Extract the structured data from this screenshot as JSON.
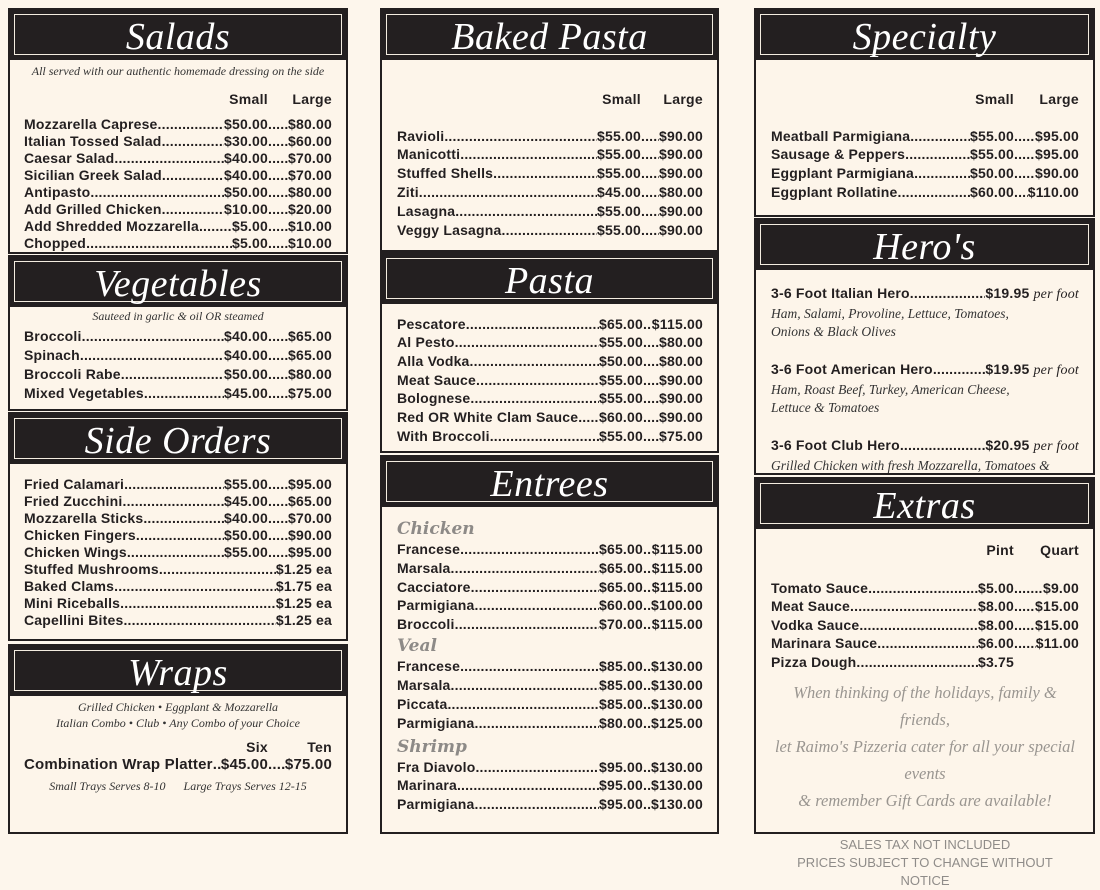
{
  "salads": {
    "title": "Salads",
    "note": "All served with our authentic homemade dressing on the side",
    "col_headers": [
      "Small",
      "Large"
    ],
    "items": [
      {
        "name": "Mozzarella Caprese",
        "prices": [
          "$50.00",
          "$80.00"
        ]
      },
      {
        "name": "Italian Tossed Salad",
        "prices": [
          "$30.00",
          "$60.00"
        ]
      },
      {
        "name": "Caesar Salad",
        "prices": [
          "$40.00",
          "$70.00"
        ]
      },
      {
        "name": "Sicilian Greek Salad",
        "prices": [
          "$40.00",
          "$70.00"
        ]
      },
      {
        "name": "Antipasto",
        "prices": [
          "$50.00",
          "$80.00"
        ]
      },
      {
        "name": "Add Grilled Chicken",
        "prices": [
          "$10.00",
          "$20.00"
        ]
      },
      {
        "name": "Add Shredded Mozzarella",
        "prices": [
          "$5.00",
          "$10.00"
        ]
      },
      {
        "name": "Chopped",
        "prices": [
          "$5.00",
          "$10.00"
        ]
      }
    ]
  },
  "vegetables": {
    "title": "Vegetables",
    "note": "Sauteed in garlic & oil OR steamed",
    "items": [
      {
        "name": "Broccoli",
        "prices": [
          "$40.00",
          "$65.00"
        ]
      },
      {
        "name": "Spinach",
        "prices": [
          "$40.00",
          "$65.00"
        ]
      },
      {
        "name": "Broccoli Rabe",
        "prices": [
          "$50.00",
          "$80.00"
        ]
      },
      {
        "name": "Mixed Vegetables",
        "prices": [
          "$45.00",
          "$75.00"
        ]
      }
    ]
  },
  "side_orders": {
    "title": "Side Orders",
    "items": [
      {
        "name": "Fried Calamari",
        "prices": [
          "$55.00",
          "$95.00"
        ]
      },
      {
        "name": "Fried Zucchini",
        "prices": [
          "$45.00",
          "$65.00"
        ]
      },
      {
        "name": "Mozzarella Sticks",
        "prices": [
          "$40.00",
          "$70.00"
        ]
      },
      {
        "name": "Chicken Fingers",
        "prices": [
          "$50.00",
          "$90.00"
        ]
      },
      {
        "name": "Chicken Wings",
        "prices": [
          "$55.00",
          "$95.00"
        ]
      },
      {
        "name": "Stuffed Mushrooms",
        "prices": [
          "$1.25 ea"
        ]
      },
      {
        "name": "Baked Clams",
        "prices": [
          "$1.75 ea"
        ]
      },
      {
        "name": "Mini Riceballs",
        "prices": [
          "$1.25 ea"
        ]
      },
      {
        "name": "Capellini Bites",
        "prices": [
          "$1.25 ea"
        ]
      }
    ]
  },
  "wraps": {
    "title": "Wraps",
    "notes": [
      "Grilled Chicken • Eggplant & Mozzarella",
      "Italian Combo • Club • Any Combo of your Choice"
    ],
    "col_headers": [
      "Six",
      "Ten"
    ],
    "items": [
      {
        "name": "Combination Wrap Platter",
        "prices": [
          "$45.00",
          "$75.00"
        ]
      }
    ],
    "footnote": "Small Trays Serves 8-10      Large Trays Serves 12-15"
  },
  "baked_pasta": {
    "title": "Baked Pasta",
    "col_headers": [
      "Small",
      "Large"
    ],
    "items": [
      {
        "name": "Ravioli",
        "prices": [
          "$55.00",
          "$90.00"
        ]
      },
      {
        "name": "Manicotti",
        "prices": [
          "$55.00",
          "$90.00"
        ]
      },
      {
        "name": "Stuffed Shells",
        "prices": [
          "$55.00",
          "$90.00"
        ]
      },
      {
        "name": "Ziti",
        "prices": [
          "$45.00",
          "$80.00"
        ]
      },
      {
        "name": "Lasagna",
        "prices": [
          "$55.00",
          "$90.00"
        ]
      },
      {
        "name": "Veggy Lasagna",
        "prices": [
          "$55.00",
          "$90.00"
        ]
      }
    ]
  },
  "pasta": {
    "title": "Pasta",
    "items": [
      {
        "name": "Pescatore",
        "prices": [
          "$65.00",
          "$115.00"
        ]
      },
      {
        "name": "Al Pesto",
        "prices": [
          "$55.00",
          "$80.00"
        ]
      },
      {
        "name": "Alla Vodka",
        "prices": [
          "$50.00",
          "$80.00"
        ]
      },
      {
        "name": "Meat Sauce",
        "prices": [
          "$55.00",
          "$90.00"
        ]
      },
      {
        "name": "Bolognese",
        "prices": [
          "$55.00",
          "$90.00"
        ]
      },
      {
        "name": "Red OR White Clam Sauce",
        "prices": [
          "$60.00",
          "$90.00"
        ]
      },
      {
        "name": "With Broccoli",
        "prices": [
          "$55.00",
          "$75.00"
        ]
      }
    ]
  },
  "entrees": {
    "title": "Entrees",
    "groups": [
      {
        "label": "Chicken",
        "items": [
          {
            "name": "Francese",
            "prices": [
              "$65.00",
              "$115.00"
            ]
          },
          {
            "name": "Marsala",
            "prices": [
              "$65.00",
              "$115.00"
            ]
          },
          {
            "name": "Cacciatore",
            "prices": [
              "$65.00",
              "$115.00"
            ]
          },
          {
            "name": "Parmigiana",
            "prices": [
              "$60.00",
              "$100.00"
            ]
          },
          {
            "name": "Broccoli",
            "prices": [
              "$70.00",
              "$115.00"
            ]
          }
        ]
      },
      {
        "label": "Veal",
        "items": [
          {
            "name": "Francese",
            "prices": [
              "$85.00",
              "$130.00"
            ]
          },
          {
            "name": "Marsala",
            "prices": [
              "$85.00",
              "$130.00"
            ]
          },
          {
            "name": "Piccata",
            "prices": [
              "$85.00",
              "$130.00"
            ]
          },
          {
            "name": "Parmigiana",
            "prices": [
              "$80.00",
              "$125.00"
            ]
          }
        ]
      },
      {
        "label": "Shrimp",
        "items": [
          {
            "name": "Fra Diavolo",
            "prices": [
              "$95.00",
              "$130.00"
            ]
          },
          {
            "name": "Marinara",
            "prices": [
              "$95.00",
              "$130.00"
            ]
          },
          {
            "name": "Parmigiana",
            "prices": [
              "$95.00",
              "$130.00"
            ]
          }
        ]
      }
    ]
  },
  "specialty": {
    "title": "Specialty",
    "col_headers": [
      "Small",
      "Large"
    ],
    "items": [
      {
        "name": "Meatball Parmigiana",
        "prices": [
          "$55.00",
          "$95.00"
        ]
      },
      {
        "name": "Sausage & Peppers",
        "prices": [
          "$55.00",
          "$95.00"
        ]
      },
      {
        "name": "Eggplant Parmigiana",
        "prices": [
          "$50.00",
          "$90.00"
        ]
      },
      {
        "name": "Eggplant Rollatine",
        "prices": [
          "$60.00",
          "$110.00"
        ]
      }
    ]
  },
  "heros": {
    "title": "Hero's",
    "items": [
      {
        "name": "3-6 Foot Italian Hero",
        "price": "$19.95",
        "unit": "per foot",
        "desc": [
          "Ham, Salami, Provoline, Lettuce, Tomatoes,",
          "Onions & Black Olives"
        ]
      },
      {
        "name": "3-6 Foot American Hero",
        "price": "$19.95",
        "unit": "per foot",
        "desc": [
          "Ham, Roast Beef, Turkey, American Cheese,",
          "Lettuce & Tomatoes"
        ]
      },
      {
        "name": "3-6 Foot Club Hero",
        "price": "$20.95",
        "unit": "per foot",
        "desc": [
          "Grilled Chicken with fresh Mozzarella, Tomatoes & Peppers"
        ]
      }
    ]
  },
  "extras": {
    "title": "Extras",
    "col_headers": [
      "Pint",
      "Quart"
    ],
    "items": [
      {
        "name": "Tomato Sauce",
        "prices": [
          "$5.00",
          "$9.00"
        ]
      },
      {
        "name": "Meat Sauce",
        "prices": [
          "$8.00",
          "$15.00"
        ]
      },
      {
        "name": "Vodka Sauce",
        "prices": [
          "$8.00",
          "$15.00"
        ]
      },
      {
        "name": "Marinara Sauce",
        "prices": [
          "$6.00",
          "$11.00"
        ]
      },
      {
        "name": "Pizza Dough",
        "prices": [
          "$3.75",
          ""
        ]
      }
    ],
    "promo": [
      "When thinking of the holidays, family & friends,",
      "let Raimo's Pizzeria cater for all your special events",
      "& remember Gift Cards are available!"
    ],
    "footer": [
      "SALES TAX NOT INCLUDED",
      "PRICES SUBJECT TO CHANGE WITHOUT NOTICE"
    ]
  }
}
